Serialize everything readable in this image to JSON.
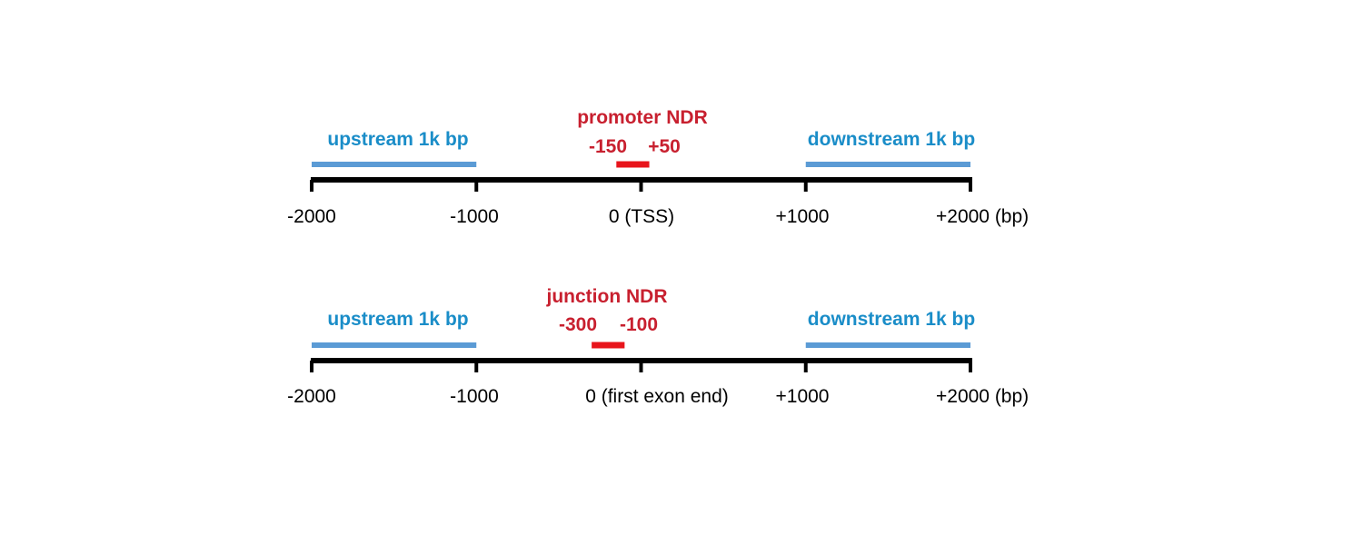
{
  "colors": {
    "region_bar": "#5b9bd5",
    "region_label": "#1a8dc8",
    "ndr_bar": "#e8141b",
    "ndr_label": "#c8202f",
    "axis": "#000000"
  },
  "panels": [
    {
      "tick_labels": [
        "-2000",
        "-1000",
        "0 (TSS)",
        "+1000",
        "+2000 (bp)"
      ],
      "tick_positions_bp": [
        -2000,
        -1000,
        0,
        1000,
        2000
      ],
      "upstream": {
        "label": "upstream 1k bp",
        "start_bp": -2000,
        "end_bp": -1000
      },
      "downstream": {
        "label": "downstream 1k bp",
        "start_bp": 1000,
        "end_bp": 2000
      },
      "ndr": {
        "title": "promoter NDR",
        "start_label": "-150",
        "end_label": "+50",
        "start_bp": -150,
        "end_bp": 50
      }
    },
    {
      "tick_labels": [
        "-2000",
        "-1000",
        "0 (first exon end)",
        "+1000",
        "+2000 (bp)"
      ],
      "tick_positions_bp": [
        -2000,
        -1000,
        0,
        1000,
        2000
      ],
      "upstream": {
        "label": "upstream 1k bp",
        "start_bp": -2000,
        "end_bp": -1000
      },
      "downstream": {
        "label": "downstream 1k bp",
        "start_bp": 1000,
        "end_bp": 2000
      },
      "ndr": {
        "title": "junction NDR",
        "start_label": "-300",
        "end_label": "-100",
        "start_bp": -300,
        "end_bp": -100
      }
    }
  ]
}
